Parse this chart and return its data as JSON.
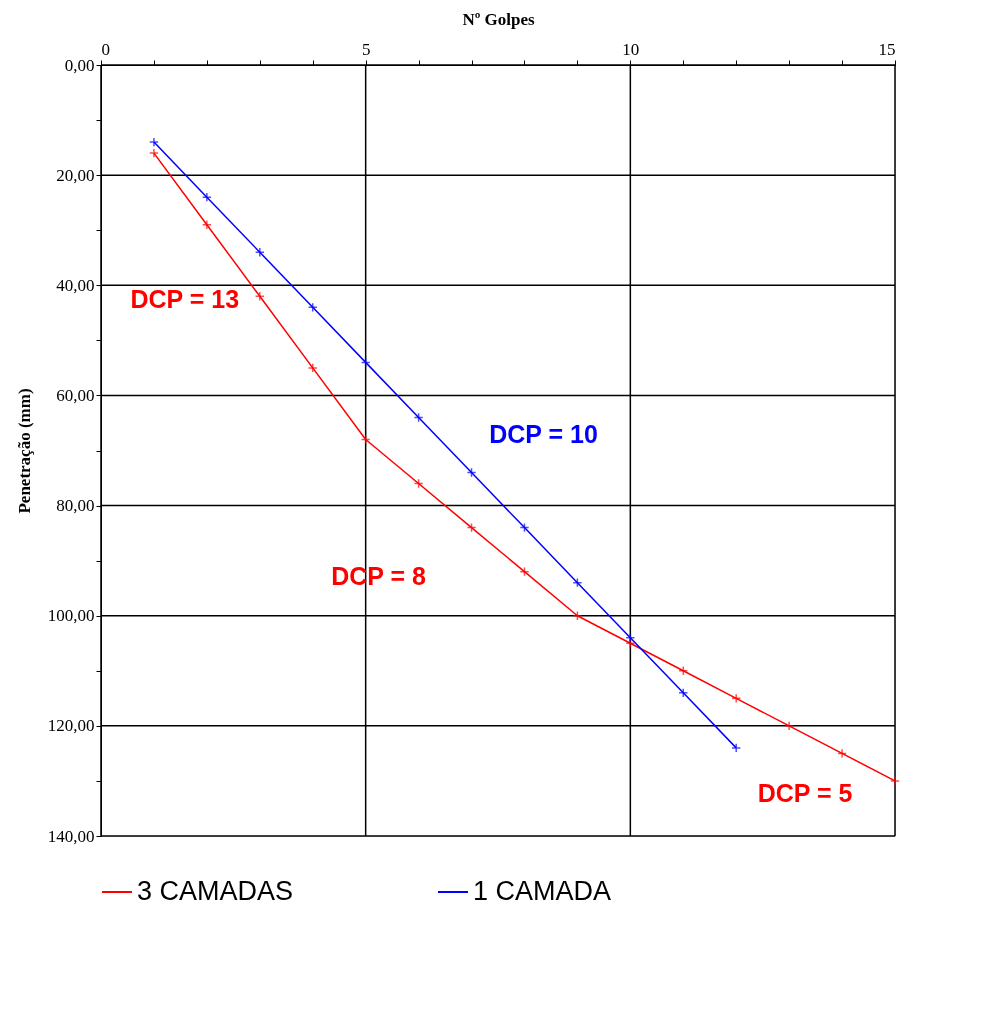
{
  "chart_data": {
    "type": "line",
    "xlabel": "Nº Golpes",
    "ylabel": "Penetração (mm)",
    "x": [
      1,
      2,
      3,
      4,
      5,
      6,
      7,
      8,
      9,
      10,
      11,
      12,
      13,
      14,
      15
    ],
    "series": [
      {
        "name": "3 CAMADAS",
        "color": "#ff0000",
        "values": [
          16,
          29,
          42,
          55,
          68,
          76,
          84,
          92,
          100,
          105,
          110,
          115,
          120,
          125,
          130
        ]
      },
      {
        "name": "1 CAMADA",
        "color": "#0000ff",
        "x": [
          1,
          2,
          3,
          4,
          5,
          6,
          7,
          8,
          9,
          10,
          11,
          12
        ],
        "values": [
          14,
          24,
          34,
          44,
          54,
          64,
          74,
          84,
          94,
          104,
          114,
          124
        ]
      }
    ],
    "xlim": [
      0,
      15
    ],
    "xticks": [
      0,
      {
        "value": 1,
        "label": null
      },
      {
        "value": 2,
        "label": null
      },
      {
        "value": 3,
        "label": null
      },
      {
        "value": 4,
        "label": null
      },
      5,
      {
        "value": 6,
        "label": null
      },
      {
        "value": 7,
        "label": null
      },
      {
        "value": 8,
        "label": null
      },
      {
        "value": 9,
        "label": null
      },
      10,
      {
        "value": 11,
        "label": null
      },
      {
        "value": 12,
        "label": null
      },
      {
        "value": 13,
        "label": null
      },
      {
        "value": 14,
        "label": null
      },
      15
    ],
    "ylim": [
      140,
      0
    ],
    "yticks": [
      {
        "value": 0,
        "label": "0,00"
      },
      {
        "value": 10,
        "label": null
      },
      {
        "value": 20,
        "label": "20,00"
      },
      {
        "value": 30,
        "label": null
      },
      {
        "value": 40,
        "label": "40,00"
      },
      {
        "value": 50,
        "label": null
      },
      {
        "value": 60,
        "label": "60,00"
      },
      {
        "value": 70,
        "label": null
      },
      {
        "value": 80,
        "label": "80,00"
      },
      {
        "value": 90,
        "label": null
      },
      {
        "value": 100,
        "label": "100,00"
      },
      {
        "value": 110,
        "label": null
      },
      {
        "value": 120,
        "label": "120,00"
      },
      {
        "value": 130,
        "label": null
      },
      {
        "value": 140,
        "label": "140,00"
      }
    ],
    "annotations": [
      {
        "text": "DCP = 13",
        "x": 3,
        "y": 42
      },
      {
        "text": "DCP = 10",
        "x": 7,
        "y": 74
      },
      {
        "text": "DCP = 8",
        "x": 7,
        "y": 84
      },
      {
        "text": "DCP = 5",
        "x": 15,
        "y": 130
      }
    ],
    "grid": true,
    "legend": "bottom",
    "marker": "cross",
    "line_style": "solid"
  }
}
